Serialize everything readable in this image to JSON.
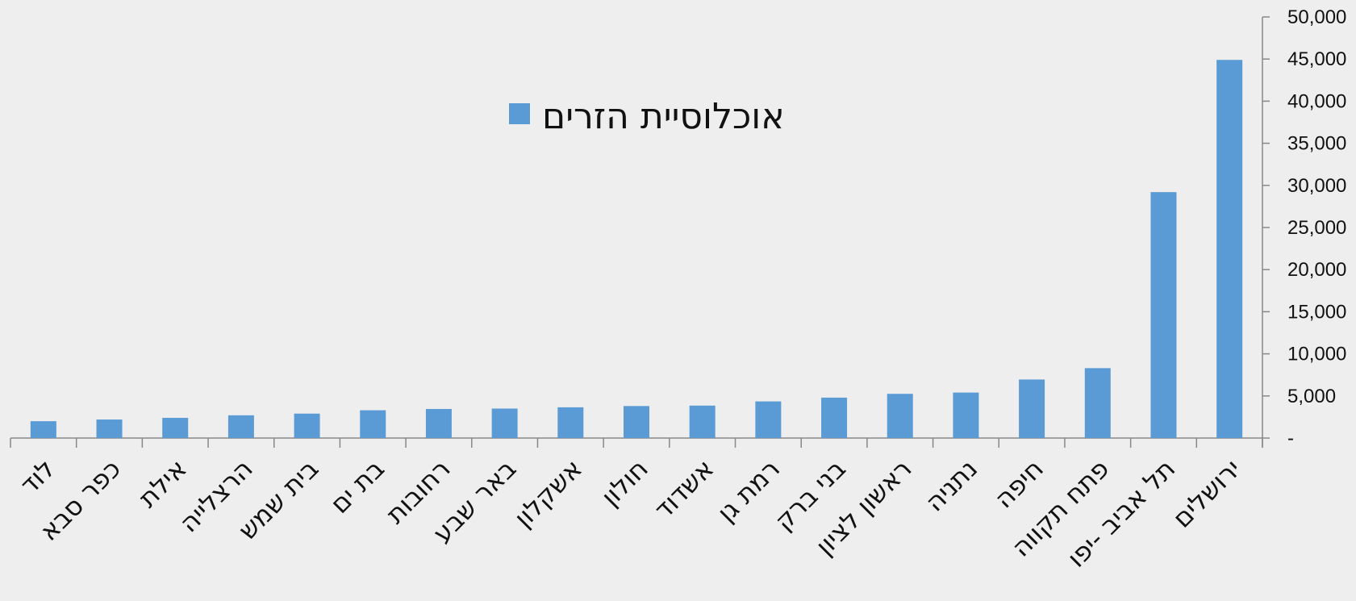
{
  "chart_data": {
    "type": "bar",
    "categories": [
      "לוד",
      "כפר סבא",
      "אילת",
      "הרצלייה",
      "בית שמש",
      "בת ים",
      "רחובות",
      "באר שבע",
      "אשקלון",
      "חולון",
      "אשדוד",
      "רמת גן",
      "בני ברק",
      "ראשון לציון",
      "נתניה",
      "חיפה",
      "פתח תקווה",
      "תל אביב -יפו",
      "ירושלים"
    ],
    "series": [
      {
        "name": "אוכלוסיית הזרים",
        "color": "#5b9bd5",
        "values": [
          2000,
          2200,
          2400,
          2700,
          2900,
          3300,
          3450,
          3500,
          3650,
          3800,
          3850,
          4350,
          4800,
          5250,
          5400,
          6950,
          8300,
          29200,
          44900
        ]
      }
    ],
    "y_axis": {
      "position": "right",
      "min": 0,
      "max": 50000,
      "step": 5000,
      "tick_labels": [
        "-",
        "5,000",
        "10,000",
        "15,000",
        "20,000",
        "25,000",
        "30,000",
        "35,000",
        "40,000",
        "45,000",
        "50,000"
      ]
    },
    "legend": {
      "position": "top-center"
    },
    "grid": false,
    "colors": {
      "axis": "#888888",
      "background": "#eeeeee",
      "text": "#111111"
    }
  }
}
